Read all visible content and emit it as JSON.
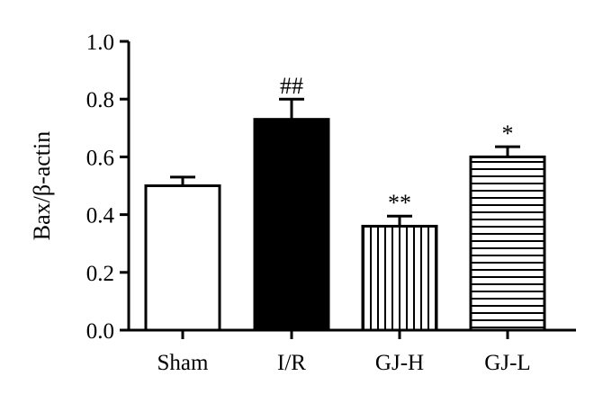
{
  "chart_data": {
    "type": "bar",
    "categories": [
      "Sham",
      "I/R",
      "GJ-H",
      "GJ-L"
    ],
    "values": [
      0.5,
      0.73,
      0.36,
      0.6
    ],
    "errors": [
      0.03,
      0.07,
      0.035,
      0.035
    ],
    "significance": [
      "",
      "##",
      "**",
      "*"
    ],
    "fills": [
      "white",
      "black",
      "vertical-stripes",
      "horizontal-stripes"
    ],
    "ylabel": "Bax/β-actin",
    "xlabel": "",
    "ylim": [
      0.0,
      1.0
    ],
    "yticks": [
      0.0,
      0.2,
      0.4,
      0.6,
      0.8,
      1.0
    ],
    "ytick_labels": [
      "0.0",
      "0.2",
      "0.4",
      "0.6",
      "0.8",
      "1.0"
    ],
    "grid": false,
    "legend": "none"
  }
}
